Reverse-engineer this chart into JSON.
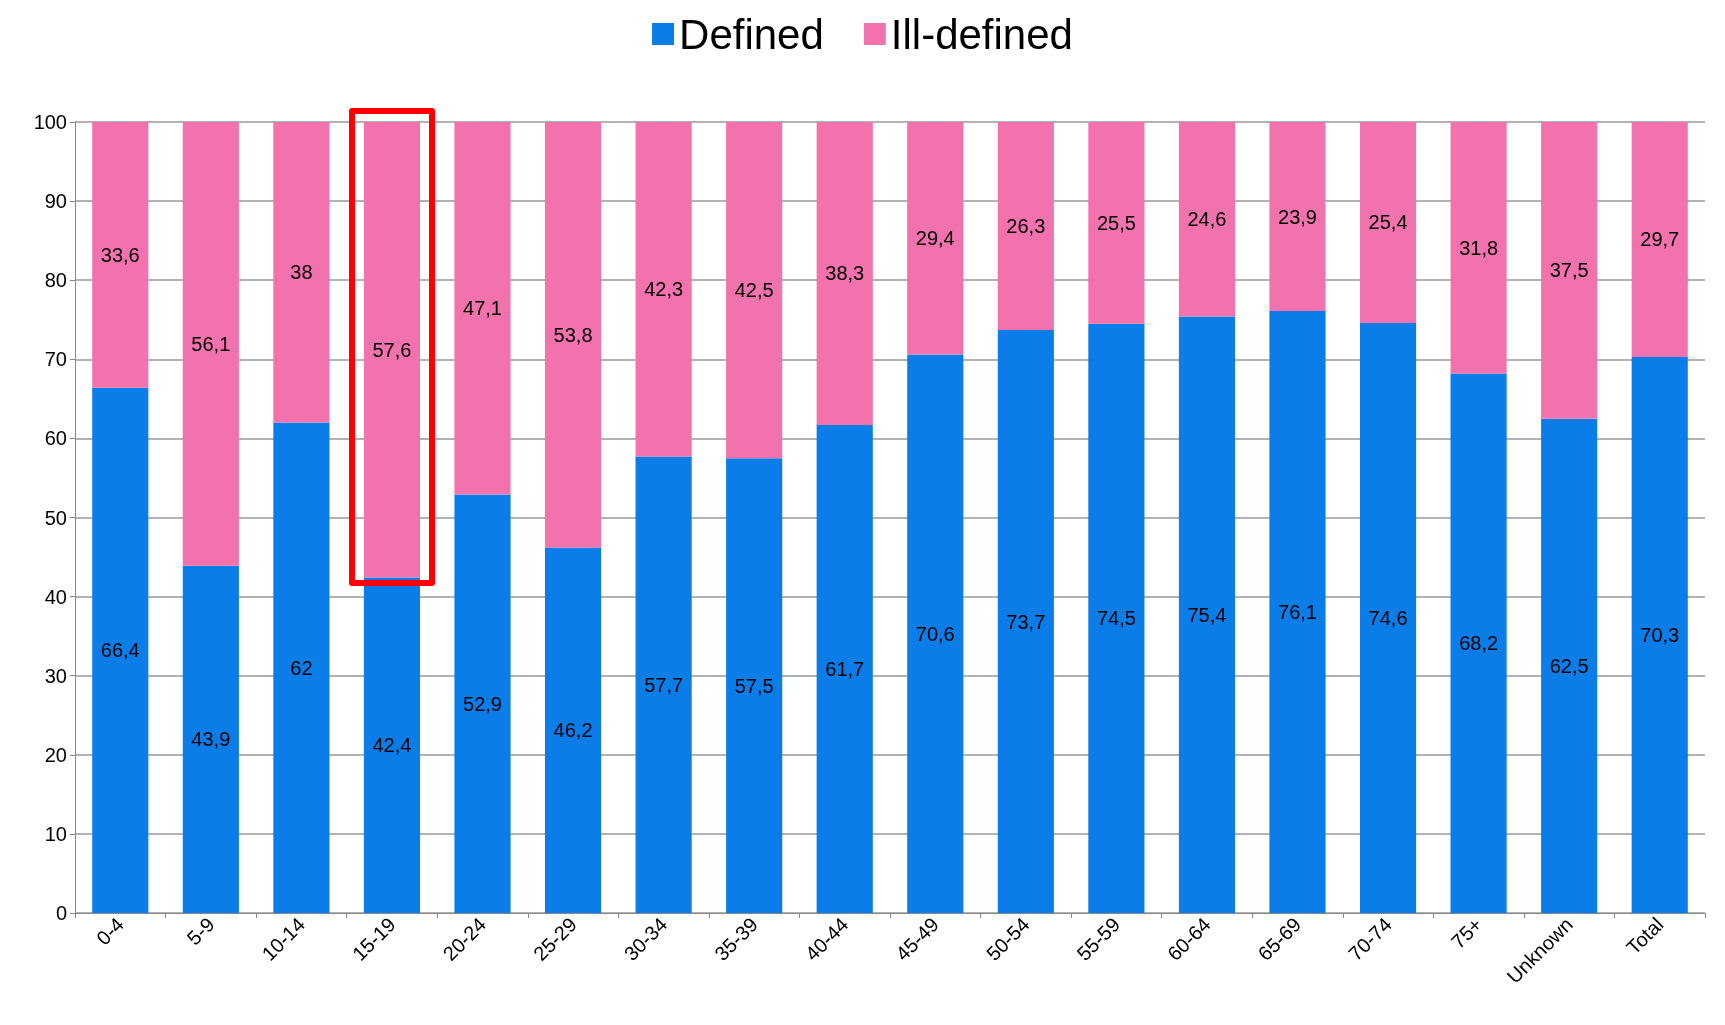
{
  "chart_data": {
    "type": "bar",
    "stacked": true,
    "categories": [
      "0-4",
      "5-9",
      "10-14",
      "15-19",
      "20-24",
      "25-29",
      "30-34",
      "35-39",
      "40-44",
      "45-49",
      "50-54",
      "55-59",
      "60-64",
      "65-69",
      "70-74",
      "75+",
      "Unknown",
      "Total"
    ],
    "series": [
      {
        "name": "Defined",
        "color": "#0a7de8",
        "values": [
          66.4,
          43.9,
          62,
          42.4,
          52.9,
          46.2,
          57.7,
          57.5,
          61.7,
          70.6,
          73.7,
          74.5,
          75.4,
          76.1,
          74.6,
          68.2,
          62.5,
          70.3
        ],
        "value_labels": [
          "66,4",
          "43,9",
          "62",
          "42,4",
          "52,9",
          "46,2",
          "57,7",
          "57,5",
          "61,7",
          "70,6",
          "73,7",
          "74,5",
          "75,4",
          "76,1",
          "74,6",
          "68,2",
          "62,5",
          "70,3"
        ]
      },
      {
        "name": "Ill-defined",
        "color": "#f272ae",
        "values": [
          33.6,
          56.1,
          38,
          57.6,
          47.1,
          53.8,
          42.3,
          42.5,
          38.3,
          29.4,
          26.3,
          25.5,
          24.6,
          23.9,
          25.4,
          31.8,
          37.5,
          29.7
        ],
        "value_labels": [
          "33,6",
          "56,1",
          "38",
          "57,6",
          "47,1",
          "53,8",
          "42,3",
          "42,5",
          "38,3",
          "29,4",
          "26,3",
          "25,5",
          "24,6",
          "23,9",
          "25,4",
          "31,8",
          "37,5",
          "29,7"
        ]
      }
    ],
    "ylim": [
      0,
      100
    ],
    "yticks": [
      0,
      10,
      20,
      30,
      40,
      50,
      60,
      70,
      80,
      90,
      100
    ],
    "grid": "y",
    "legend": "top"
  }
}
